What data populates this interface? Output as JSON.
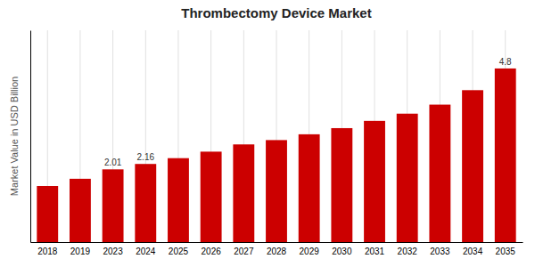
{
  "chart_data": {
    "type": "bar",
    "title": "Thrombectomy Device Market",
    "ylabel": "Market Value in USD Billion",
    "categories": [
      "2018",
      "2019",
      "2023",
      "2024",
      "2025",
      "2026",
      "2027",
      "2028",
      "2029",
      "2030",
      "2031",
      "2032",
      "2033",
      "2034",
      "2035"
    ],
    "values": [
      1.55,
      1.75,
      2.01,
      2.16,
      2.32,
      2.5,
      2.7,
      2.82,
      2.98,
      3.15,
      3.35,
      3.55,
      3.8,
      4.2,
      4.8
    ],
    "value_labels": [
      null,
      null,
      "2.01",
      "2.16",
      null,
      null,
      null,
      null,
      null,
      null,
      null,
      null,
      null,
      null,
      "4.8"
    ],
    "data_labels": true,
    "color": "#cc0000",
    "ylim": [
      0,
      5.856
    ],
    "grid": true,
    "tick_labels": "x"
  }
}
